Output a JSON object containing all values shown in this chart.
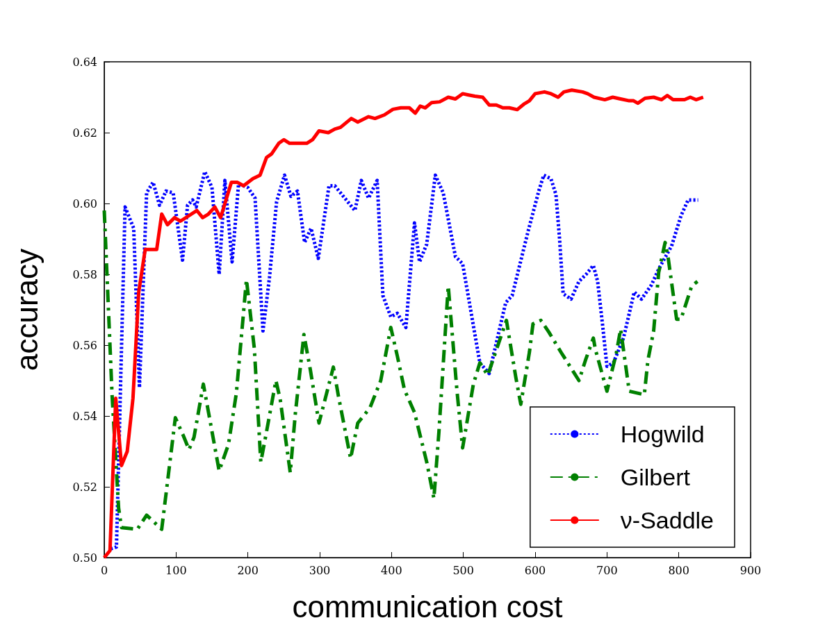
{
  "chart_data": {
    "type": "line",
    "xlabel": "communication cost",
    "ylabel": "accuracy",
    "xlim": [
      0,
      900
    ],
    "xticks": [
      0,
      100,
      200,
      300,
      400,
      500,
      600,
      700,
      800,
      900
    ],
    "ylim": [
      0.5,
      0.64
    ],
    "yticks": [
      {
        "value": 0.5,
        "label": "0.50"
      },
      {
        "value": 0.52,
        "label": "0.52"
      },
      {
        "value": 0.54,
        "label": "0.54"
      },
      {
        "value": 0.56,
        "label": "0.56"
      },
      {
        "value": 0.58,
        "label": "0.58"
      },
      {
        "value": 0.6,
        "label": "0.60"
      },
      {
        "value": 0.62,
        "label": "0.62"
      },
      {
        "value": 0.64,
        "label": "0.64"
      }
    ],
    "grid": false,
    "legend": "bottom right",
    "marker": "none",
    "series": [
      {
        "name": "Hogwild",
        "color": "#0000ff",
        "line_style": "dotted",
        "x": [
          9,
          17,
          29,
          36,
          41,
          49,
          59,
          68,
          77,
          86,
          96,
          109,
          116,
          123,
          128,
          140,
          150,
          160,
          168,
          178,
          187,
          200,
          210,
          221,
          230,
          240,
          251,
          260,
          269,
          279,
          288,
          298,
          313,
          321,
          349,
          358,
          368,
          380,
          388,
          399,
          408,
          420,
          432,
          439,
          449,
          461,
          472,
          489,
          499,
          523,
          536,
          559,
          568,
          590,
          605,
          612,
          622,
          629,
          634,
          639,
          650,
          661,
          671,
          681,
          687,
          694,
          700,
          709,
          723,
          738,
          748,
          762,
          772,
          790,
          803,
          813,
          821,
          827
        ],
        "values": [
          0.5025,
          0.503,
          0.599,
          0.5955,
          0.593,
          0.548,
          0.603,
          0.606,
          0.5995,
          0.6035,
          0.603,
          0.584,
          0.5995,
          0.601,
          0.599,
          0.609,
          0.6045,
          0.58,
          0.6065,
          0.5835,
          0.6055,
          0.6045,
          0.6015,
          0.564,
          0.579,
          0.6005,
          0.608,
          0.602,
          0.6035,
          0.589,
          0.593,
          0.5845,
          0.605,
          0.605,
          0.598,
          0.6065,
          0.6015,
          0.6065,
          0.574,
          0.568,
          0.569,
          0.565,
          0.5945,
          0.5835,
          0.5885,
          0.608,
          0.603,
          0.585,
          0.583,
          0.555,
          0.552,
          0.572,
          0.574,
          0.592,
          0.6035,
          0.608,
          0.607,
          0.6025,
          0.59,
          0.5745,
          0.573,
          0.578,
          0.58,
          0.5825,
          0.578,
          0.5655,
          0.554,
          0.555,
          0.562,
          0.575,
          0.573,
          0.577,
          0.5815,
          0.588,
          0.5965,
          0.601,
          0.601,
          0.601
        ]
      },
      {
        "name": "Gilbert",
        "color": "#008000",
        "line_style": "dashed",
        "x": [
          0,
          11,
          20,
          24,
          46,
          59,
          80,
          99,
          110,
          118,
          125,
          138,
          160,
          173,
          184,
          198,
          209,
          218,
          225,
          239,
          245,
          259,
          266,
          278,
          287,
          299,
          319,
          326,
          343,
          353,
          370,
          385,
          399,
          408,
          418,
          432,
          449,
          459,
          466,
          479,
          491,
          499,
          514,
          523,
          534,
          560,
          573,
          580,
          592,
          597,
          608,
          619,
          636,
          661,
          670,
          681,
          684,
          700,
          713,
          719,
          731,
          752,
          757,
          765,
          772,
          781,
          785,
          797,
          803,
          818,
          826
        ],
        "values": [
          0.598,
          0.5455,
          0.514,
          0.5085,
          0.508,
          0.512,
          0.508,
          0.5395,
          0.5345,
          0.5305,
          0.534,
          0.549,
          0.5245,
          0.532,
          0.5465,
          0.5785,
          0.559,
          0.527,
          0.5345,
          0.55,
          0.5447,
          0.524,
          0.5405,
          0.563,
          0.553,
          0.538,
          0.5538,
          0.5457,
          0.528,
          0.538,
          0.5423,
          0.55,
          0.565,
          0.557,
          0.5474,
          0.541,
          0.527,
          0.5167,
          0.5355,
          0.5767,
          0.5474,
          0.531,
          0.549,
          0.555,
          0.5515,
          0.567,
          0.551,
          0.5433,
          0.558,
          0.566,
          0.567,
          0.5637,
          0.558,
          0.55,
          0.5557,
          0.562,
          0.5587,
          0.547,
          0.5577,
          0.5645,
          0.547,
          0.546,
          0.5557,
          0.564,
          0.5805,
          0.589,
          0.585,
          0.5673,
          0.5673,
          0.5767,
          0.578
        ]
      },
      {
        "name": "ν-Saddle",
        "color": "#ff0000",
        "line_style": "solid",
        "x": [
          0,
          8,
          16,
          24,
          32,
          40,
          48,
          57,
          73,
          80,
          88,
          98,
          106,
          129,
          137,
          145,
          154,
          162,
          177,
          185,
          194,
          207,
          217,
          226,
          233,
          243,
          250,
          258,
          267,
          282,
          290,
          299,
          312,
          321,
          329,
          344,
          353,
          368,
          377,
          390,
          402,
          413,
          425,
          433,
          440,
          447,
          456,
          467,
          479,
          489,
          499,
          506,
          516,
          527,
          536,
          546,
          555,
          564,
          575,
          584,
          592,
          600,
          613,
          622,
          632,
          640,
          651,
          666,
          673,
          682,
          697,
          708,
          719,
          731,
          737,
          743,
          753,
          765,
          776,
          784,
          792,
          808,
          816,
          824,
          834
        ],
        "values": [
          0.5,
          0.502,
          0.545,
          0.526,
          0.53,
          0.545,
          0.575,
          0.587,
          0.587,
          0.597,
          0.594,
          0.596,
          0.595,
          0.598,
          0.596,
          0.597,
          0.599,
          0.596,
          0.606,
          0.606,
          0.605,
          0.607,
          0.608,
          0.613,
          0.614,
          0.617,
          0.618,
          0.617,
          0.617,
          0.617,
          0.618,
          0.6205,
          0.62,
          0.621,
          0.6215,
          0.624,
          0.623,
          0.6245,
          0.624,
          0.625,
          0.6266,
          0.627,
          0.627,
          0.6255,
          0.6275,
          0.627,
          0.6285,
          0.6287,
          0.63,
          0.6295,
          0.631,
          0.6307,
          0.6303,
          0.63,
          0.6278,
          0.6278,
          0.627,
          0.627,
          0.6265,
          0.628,
          0.629,
          0.631,
          0.6315,
          0.631,
          0.63,
          0.6315,
          0.632,
          0.6315,
          0.631,
          0.63,
          0.6293,
          0.63,
          0.6295,
          0.629,
          0.629,
          0.6283,
          0.6297,
          0.63,
          0.6293,
          0.6305,
          0.6293,
          0.6293,
          0.63,
          0.6293,
          0.63
        ]
      }
    ]
  }
}
